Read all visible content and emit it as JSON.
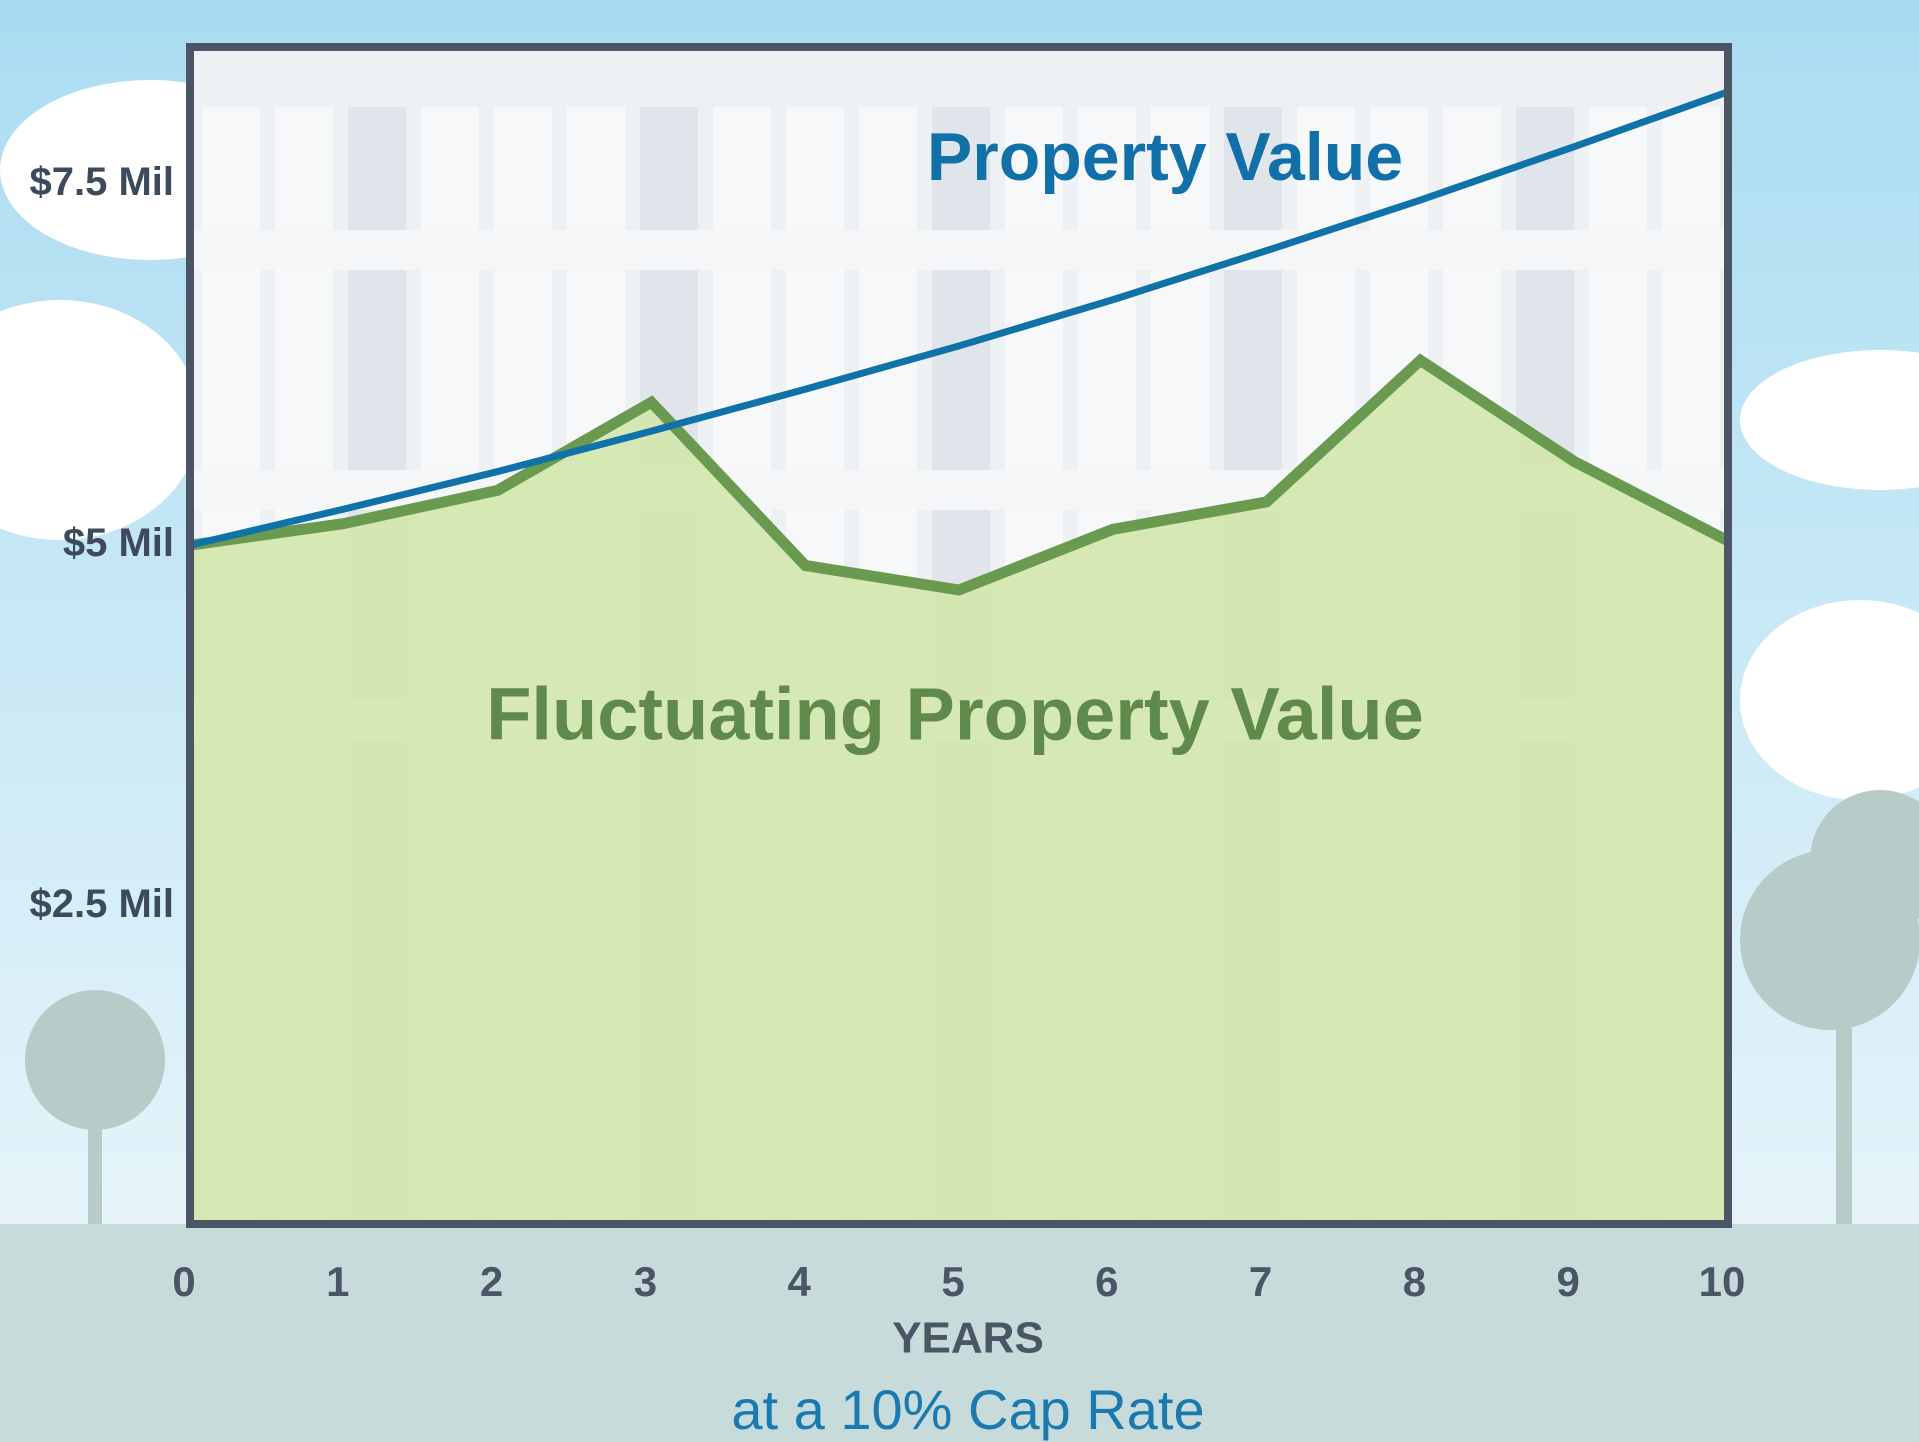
{
  "chart_data": {
    "type": "line",
    "subtitle": "at a 10% Cap Rate",
    "x_label": "YEARS",
    "x": [
      0,
      1,
      2,
      3,
      4,
      5,
      6,
      7,
      8,
      9,
      10
    ],
    "series": [
      {
        "name": "Property Value",
        "color": "#0f72a8",
        "values": [
          5,
          5.25,
          5.51,
          5.79,
          6.08,
          6.38,
          6.7,
          7.04,
          7.39,
          7.76,
          8.14
        ]
      },
      {
        "name": "Fluctuating Property Value",
        "color": "#6a9a50",
        "fill": "#d3e7ae",
        "values": [
          5,
          5.15,
          5.38,
          5.99,
          4.86,
          4.69,
          5.11,
          5.3,
          6.28,
          5.58,
          5.03
        ]
      }
    ],
    "xlim": [
      0,
      10
    ],
    "xticks": [
      0,
      1,
      2,
      3,
      4,
      5,
      6,
      7,
      8,
      9,
      10
    ],
    "ylim": [
      0.3,
      8.45
    ],
    "yticks": [
      {
        "value": 2.5,
        "label": "$2.5 Mil"
      },
      {
        "value": 5,
        "label": "$5 Mil"
      },
      {
        "value": 7.5,
        "label": "$7.5 Mil"
      }
    ],
    "grid": false
  }
}
